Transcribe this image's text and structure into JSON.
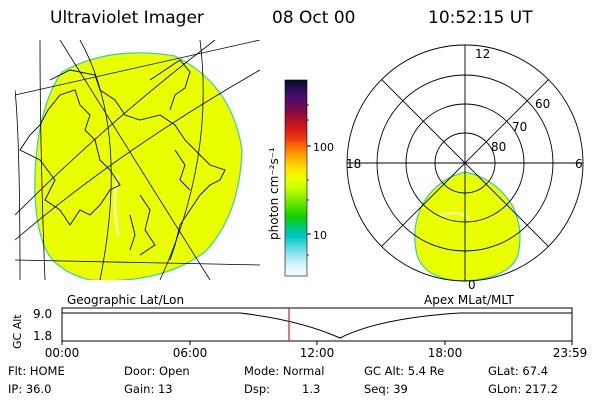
{
  "header": {
    "instrument": "Ultraviolet Imager",
    "date": "08 Oct 00",
    "time": "10:52:15 UT"
  },
  "geo_panel": {
    "label": "Geographic Lat/Lon"
  },
  "polar_panel": {
    "label": "Apex MLat/MLT",
    "mlt_labels": [
      "12",
      "18",
      "6",
      "0"
    ],
    "lat_labels": [
      "60",
      "70",
      "80"
    ]
  },
  "colorbar": {
    "label": "photon cm⁻²s⁻¹",
    "ticks": [
      "100",
      "10"
    ],
    "colors": [
      "#0a0a28",
      "#2a0f55",
      "#550a70",
      "#7a0a4a",
      "#b0102a",
      "#d81818",
      "#f03a10",
      "#ff7a00",
      "#ffb000",
      "#ffe000",
      "#eaff00",
      "#c8ff00",
      "#8cf000",
      "#4be000",
      "#10d000",
      "#00c87a",
      "#00c8c8",
      "#55d8e0",
      "#a0e8f0",
      "#dff6ff",
      "#f4faff"
    ]
  },
  "altitude_plot": {
    "ylabel": "GC Alt",
    "yticks": [
      "9.0",
      "1.8"
    ],
    "xticks": [
      "00:00",
      "06:00",
      "12:00",
      "18:00",
      "23:59"
    ],
    "marker_color": "#cc2222"
  },
  "info": {
    "flt": "Flt: HOME",
    "ip": "IP: 36.0",
    "door": "Door: Open",
    "gain": "Gain: 13",
    "mode": "Mode: Normal",
    "dsp_label": "Dsp:",
    "dsp_value": "1.3",
    "gcalt": "GC Alt: 5.4 Re",
    "seq": "Seq: 39",
    "glat": "GLat:  67.4",
    "glon": "GLon: 217.2"
  },
  "colors": {
    "aurora_fill": "#eaff00",
    "aurora_edge": "#30d0b0"
  }
}
